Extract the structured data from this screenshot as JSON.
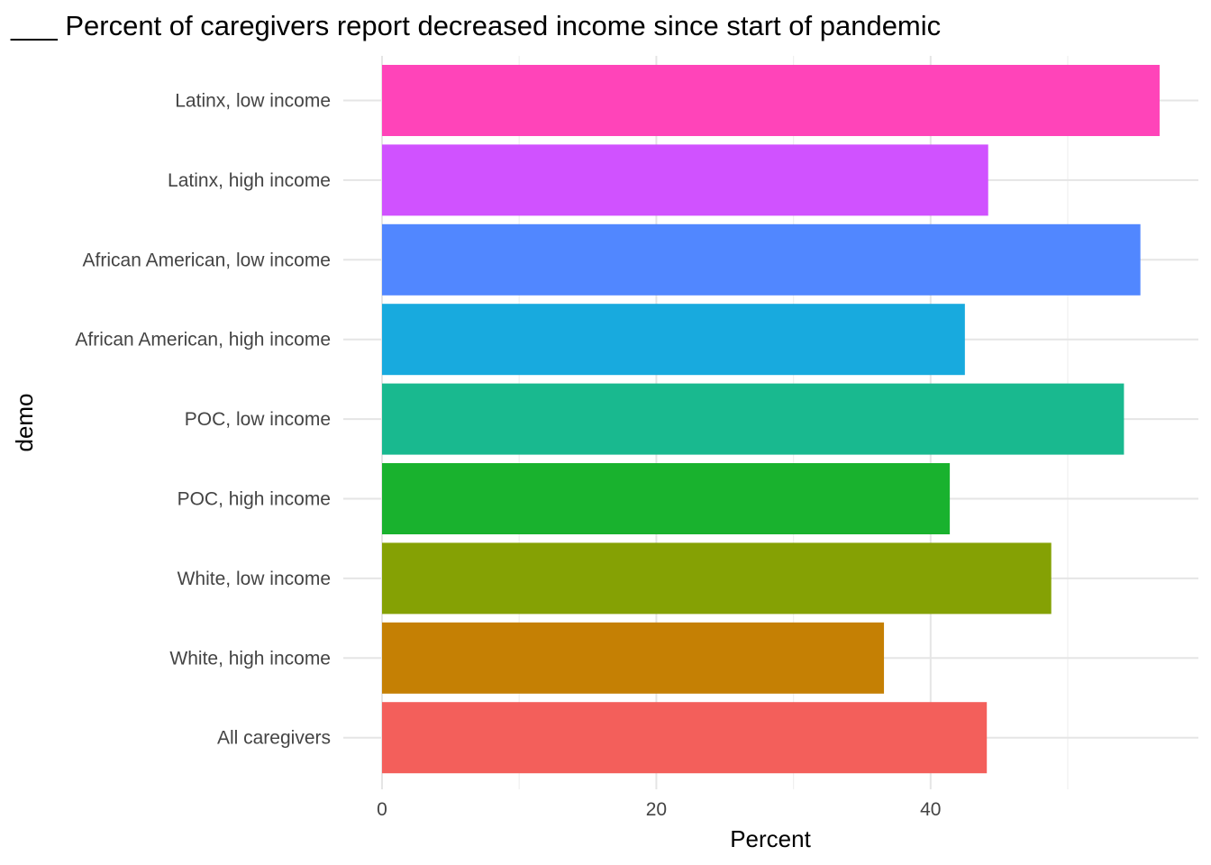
{
  "chart_data": {
    "type": "bar",
    "orientation": "horizontal",
    "title": "___ Percent of caregivers report decreased income since start of pandemic",
    "xlabel": "Percent",
    "ylabel": "demo",
    "xlim": [
      0,
      60
    ],
    "xticks": [
      0,
      20,
      40
    ],
    "grid": true,
    "legend": "none",
    "categories": [
      "Latinx, low income",
      "Latinx, high income",
      "African American, low income",
      "African American, high income",
      "POC, low income",
      "POC, high income",
      "White, low income",
      "White, high income",
      "All caregivers"
    ],
    "values": [
      56.7,
      44.2,
      55.3,
      42.5,
      54.1,
      41.4,
      48.8,
      36.6,
      44.1
    ],
    "colors": [
      "#ff44b9",
      "#d052ff",
      "#5187ff",
      "#18aade",
      "#19b98f",
      "#19b22e",
      "#85a104",
      "#c58004",
      "#f35f5b"
    ]
  }
}
